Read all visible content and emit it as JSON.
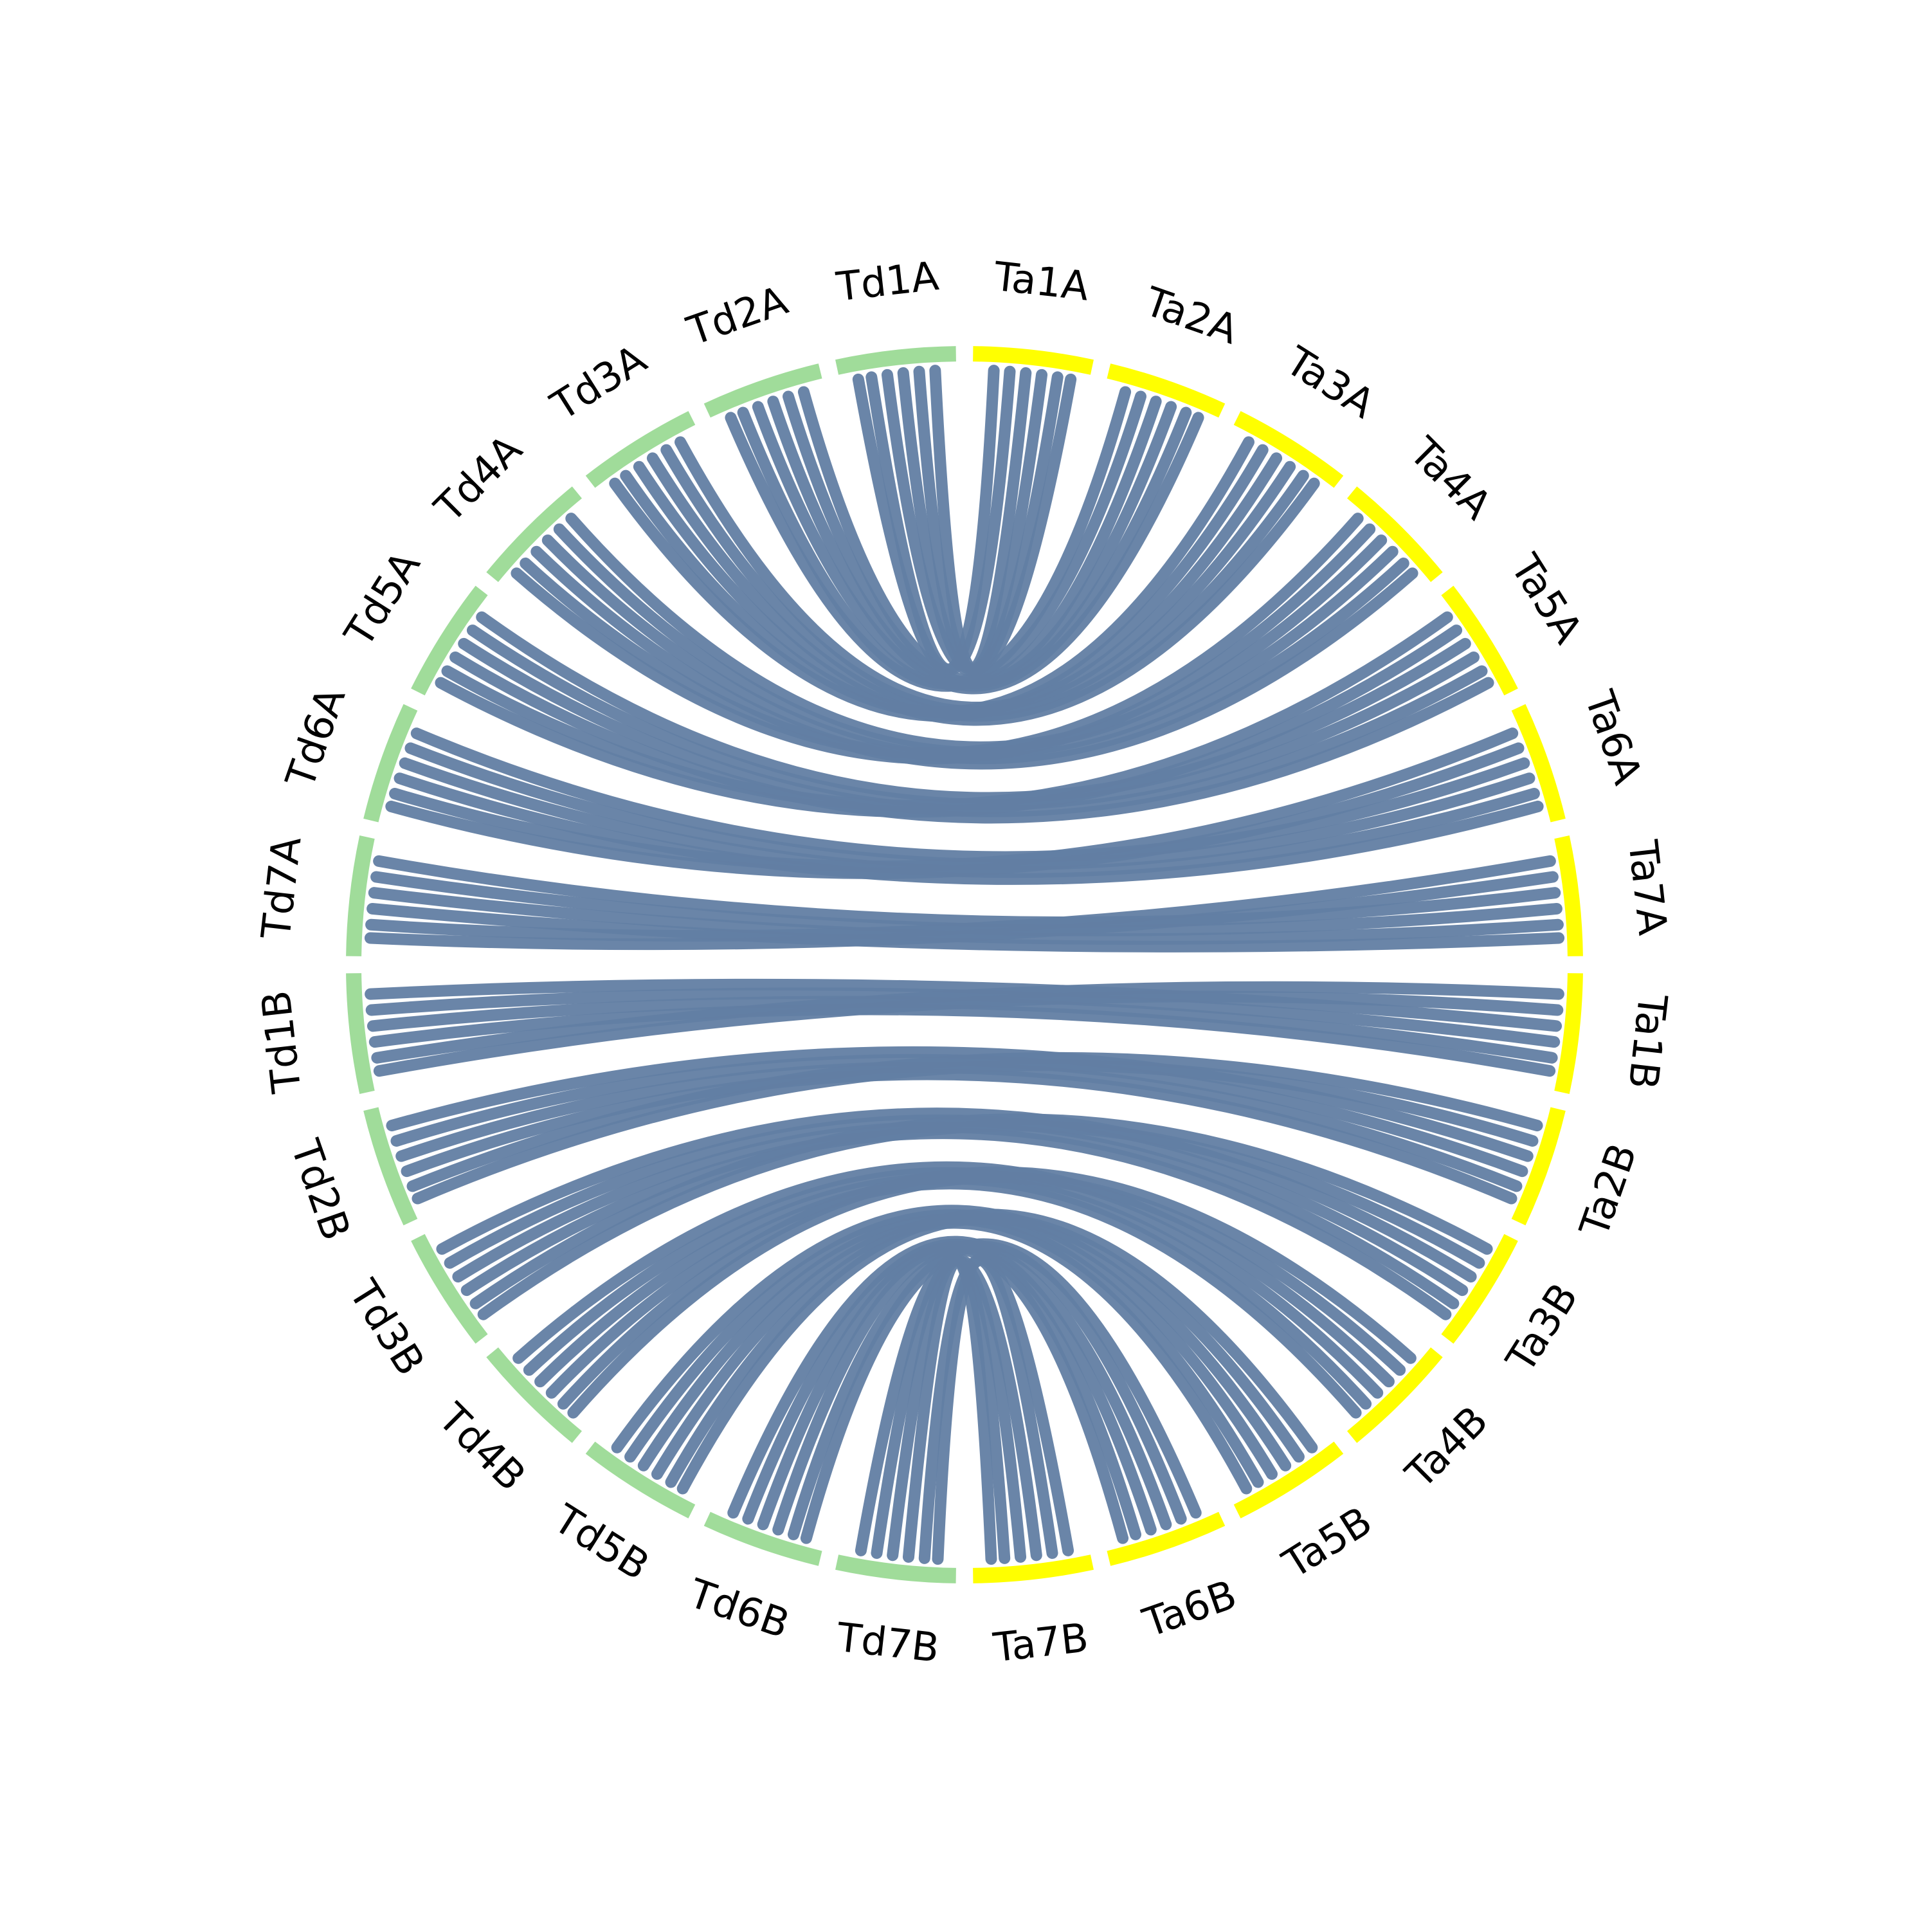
{
  "chart_data": {
    "type": "chord",
    "sectors": [
      {
        "label": "Ta1A",
        "color": "#ffff00"
      },
      {
        "label": "Ta2A",
        "color": "#ffff00"
      },
      {
        "label": "Ta3A",
        "color": "#ffff00"
      },
      {
        "label": "Ta4A",
        "color": "#ffff00"
      },
      {
        "label": "Ta5A",
        "color": "#ffff00"
      },
      {
        "label": "Ta6A",
        "color": "#ffff00"
      },
      {
        "label": "Ta7A",
        "color": "#ffff00"
      },
      {
        "label": "Ta1B",
        "color": "#ffff00"
      },
      {
        "label": "Ta2B",
        "color": "#ffff00"
      },
      {
        "label": "Ta3B",
        "color": "#ffff00"
      },
      {
        "label": "Ta4B",
        "color": "#ffff00"
      },
      {
        "label": "Ta5B",
        "color": "#ffff00"
      },
      {
        "label": "Ta6B",
        "color": "#ffff00"
      },
      {
        "label": "Ta7B",
        "color": "#ffff00"
      },
      {
        "label": "Td7B",
        "color": "#a0dc9a"
      },
      {
        "label": "Td6B",
        "color": "#a0dc9a"
      },
      {
        "label": "Td5B",
        "color": "#a0dc9a"
      },
      {
        "label": "Td4B",
        "color": "#a0dc9a"
      },
      {
        "label": "Td3B",
        "color": "#a0dc9a"
      },
      {
        "label": "Td2B",
        "color": "#a0dc9a"
      },
      {
        "label": "Td1B",
        "color": "#a0dc9a"
      },
      {
        "label": "Td7A",
        "color": "#a0dc9a"
      },
      {
        "label": "Td6A",
        "color": "#a0dc9a"
      },
      {
        "label": "Td5A",
        "color": "#a0dc9a"
      },
      {
        "label": "Td4A",
        "color": "#a0dc9a"
      },
      {
        "label": "Td3A",
        "color": "#a0dc9a"
      },
      {
        "label": "Td2A",
        "color": "#a0dc9a"
      },
      {
        "label": "Td1A",
        "color": "#a0dc9a"
      }
    ],
    "links": [
      [
        "Td1A",
        "Ta1A"
      ],
      [
        "Td2A",
        "Ta2A"
      ],
      [
        "Td3A",
        "Ta3A"
      ],
      [
        "Td4A",
        "Ta4A"
      ],
      [
        "Td5A",
        "Ta5A"
      ],
      [
        "Td6A",
        "Ta6A"
      ],
      [
        "Td7A",
        "Ta7A"
      ],
      [
        "Td1B",
        "Ta1B"
      ],
      [
        "Td2B",
        "Ta2B"
      ],
      [
        "Td3B",
        "Ta3B"
      ],
      [
        "Td4B",
        "Ta4B"
      ],
      [
        "Td5B",
        "Ta5B"
      ],
      [
        "Td6B",
        "Ta6B"
      ],
      [
        "Td7B",
        "Ta7B"
      ]
    ],
    "link_color": "#627ea3"
  }
}
